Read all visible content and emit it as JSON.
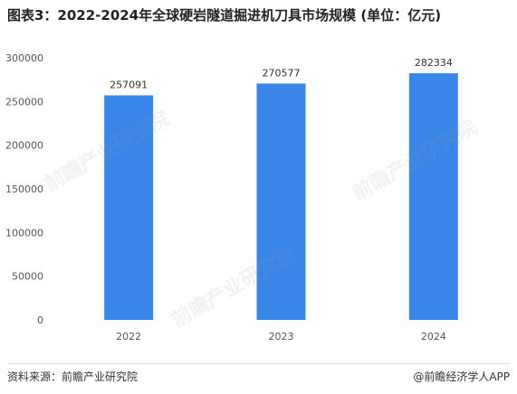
{
  "header": {
    "title": "图表3：2022-2024年全球硬岩隧道掘进机刀具市场规模 (单位：亿元)"
  },
  "footer": {
    "source": "资料来源：前瞻产业研究院",
    "credit": "@前瞻经济学人APP"
  },
  "watermark": {
    "text": "前瞻产业研究院"
  },
  "colors": {
    "bar": "#3a86e8",
    "axis_text": "#555555",
    "label_text": "#333333"
  },
  "chart_data": {
    "type": "bar",
    "title": "图表3：2022-2024年全球硬岩隧道掘进机刀具市场规模 (单位：亿元)",
    "categories": [
      "2022",
      "2023",
      "2024"
    ],
    "values": [
      257091,
      270577,
      282334
    ],
    "data_labels": [
      "257091",
      "270577",
      "282334"
    ],
    "ylim": [
      0,
      300000
    ],
    "yticks": [
      0,
      50000,
      100000,
      150000,
      200000,
      250000,
      300000
    ],
    "ytick_labels": [
      "0",
      "50000",
      "100000",
      "150000",
      "200000",
      "250000",
      "300000"
    ],
    "grid": false,
    "legend": "none"
  }
}
